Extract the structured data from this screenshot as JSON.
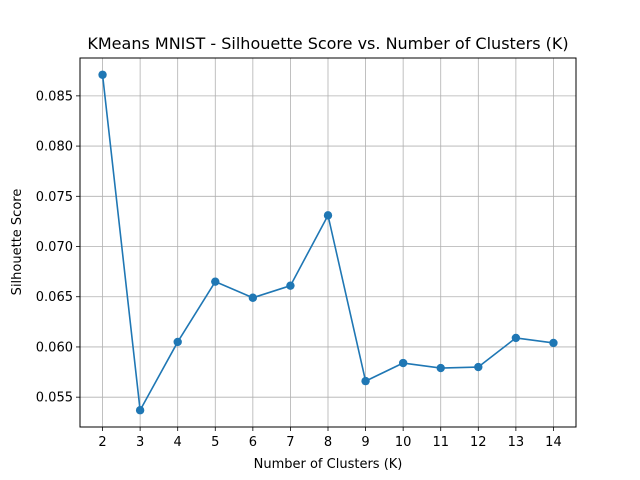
{
  "chart_data": {
    "type": "line",
    "title": "KMeans MNIST - Silhouette Score vs. Number of Clusters (K)",
    "xlabel": "Number of Clusters (K)",
    "ylabel": "Silhouette Score",
    "x": [
      2,
      3,
      4,
      5,
      6,
      7,
      8,
      9,
      10,
      11,
      12,
      13,
      14
    ],
    "series": [
      {
        "values": [
          0.0871,
          0.0537,
          0.0605,
          0.0665,
          0.0649,
          0.0661,
          0.0731,
          0.0566,
          0.0584,
          0.0579,
          0.058,
          0.0609,
          0.0604
        ],
        "color": "#1f77b4",
        "marker": "circle"
      }
    ],
    "xticks": [
      "2",
      "3",
      "4",
      "5",
      "6",
      "7",
      "8",
      "9",
      "10",
      "11",
      "12",
      "13",
      "14"
    ],
    "yticks": [
      "0.055",
      "0.060",
      "0.065",
      "0.070",
      "0.075",
      "0.080",
      "0.085"
    ],
    "xlim": [
      1.4,
      14.6
    ],
    "ylim": [
      0.05203,
      0.08877
    ],
    "grid": true
  }
}
